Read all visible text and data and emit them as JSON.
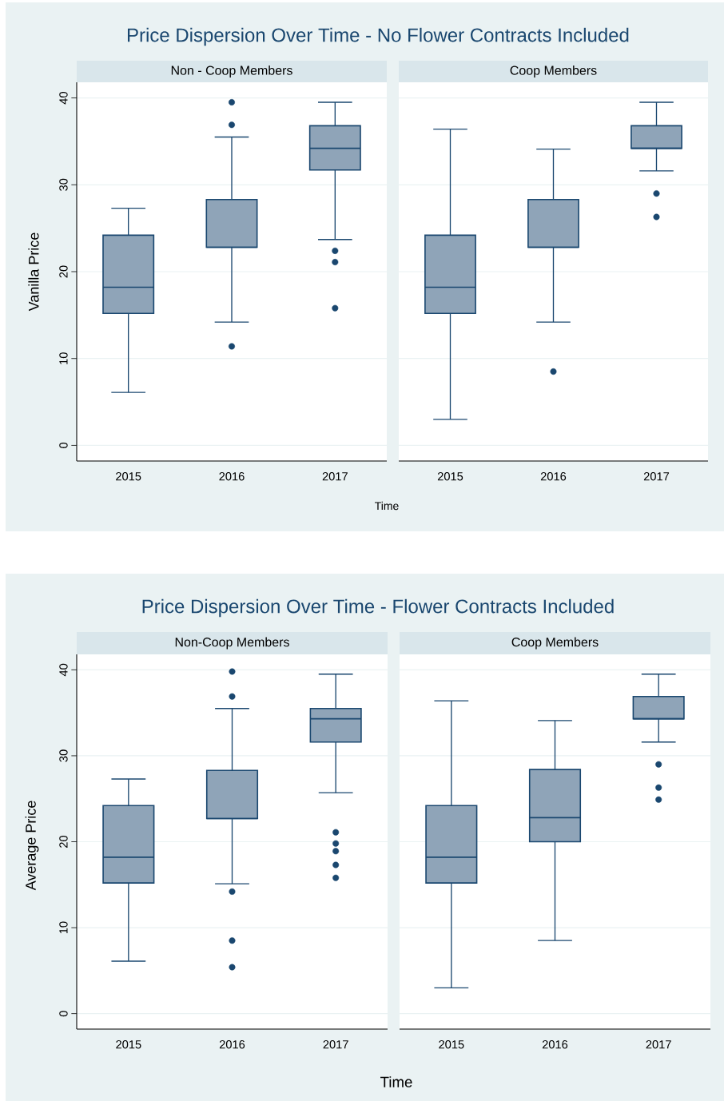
{
  "chart_data": [
    {
      "type": "box",
      "title": "Price Dispersion Over Time - No Flower Contracts Included",
      "subtitle": "Non - Coop Members",
      "xlabel": "Time",
      "ylabel": "Vanilla Price",
      "categories": [
        "2015",
        "2016",
        "2017"
      ],
      "color": "#8fa4b8",
      "ylim": [
        -1.8,
        41.8
      ],
      "yticks": [
        0,
        10,
        20,
        30,
        40
      ],
      "grid": "y",
      "boxes": [
        {
          "low": 6.1,
          "q1": 15.2,
          "median": 18.2,
          "q3": 24.2,
          "high": 27.3
        },
        {
          "low": 14.2,
          "q1": 22.8,
          "median": 22.8,
          "q3": 28.3,
          "high": 35.5,
          "outliers": [
            39.5,
            36.9,
            11.4
          ]
        },
        {
          "low": 23.7,
          "q1": 31.7,
          "median": 34.2,
          "q3": 36.8,
          "high": 39.5,
          "outliers": [
            22.4,
            21.1,
            15.8
          ]
        }
      ]
    },
    {
      "type": "box",
      "subtitle": "Coop Members",
      "categories": [
        "2015",
        "2016",
        "2017"
      ],
      "color": "#8fa4b8",
      "ylim": [
        -1.8,
        41.8
      ],
      "yticks": [
        0,
        10,
        20,
        30,
        40
      ],
      "grid": "y",
      "tick_labels": "x",
      "boxes": [
        {
          "low": 3.0,
          "q1": 15.2,
          "median": 18.2,
          "q3": 24.2,
          "high": 36.4
        },
        {
          "low": 14.2,
          "q1": 22.8,
          "median": 22.8,
          "q3": 28.3,
          "high": 34.1,
          "outliers": [
            8.5
          ]
        },
        {
          "low": 31.6,
          "q1": 34.2,
          "median": 34.2,
          "q3": 36.8,
          "high": 39.5,
          "outliers": [
            29.0,
            26.3
          ]
        }
      ]
    },
    {
      "type": "box",
      "title": "Price Dispersion Over Time - Flower Contracts Included",
      "subtitle": "Non-Coop Members",
      "xlabel": "Time",
      "ylabel": "Average Price",
      "categories": [
        "2015",
        "2016",
        "2017"
      ],
      "color": "#8fa4b8",
      "ylim": [
        -1.8,
        41.8
      ],
      "yticks": [
        0,
        10,
        20,
        30,
        40
      ],
      "grid": "y",
      "boxes": [
        {
          "low": 6.1,
          "q1": 15.2,
          "median": 18.2,
          "q3": 24.2,
          "high": 27.3
        },
        {
          "low": 15.1,
          "q1": 22.7,
          "median": 22.7,
          "q3": 28.3,
          "high": 35.5,
          "outliers": [
            39.8,
            36.9,
            14.2,
            8.5,
            5.4
          ]
        },
        {
          "low": 25.7,
          "q1": 31.6,
          "median": 34.3,
          "q3": 35.5,
          "high": 39.5,
          "outliers": [
            21.1,
            19.8,
            18.9,
            17.3,
            15.8
          ]
        }
      ]
    },
    {
      "type": "box",
      "subtitle": "Coop Members",
      "categories": [
        "2015",
        "2016",
        "2017"
      ],
      "color": "#8fa4b8",
      "ylim": [
        -1.8,
        41.8
      ],
      "yticks": [
        0,
        10,
        20,
        30,
        40
      ],
      "grid": "y",
      "tick_labels": "x",
      "boxes": [
        {
          "low": 3.0,
          "q1": 15.2,
          "median": 18.2,
          "q3": 24.2,
          "high": 36.4
        },
        {
          "low": 8.5,
          "q1": 20.0,
          "median": 22.8,
          "q3": 28.4,
          "high": 34.1
        },
        {
          "low": 31.6,
          "q1": 34.3,
          "median": 34.3,
          "q3": 36.9,
          "high": 39.5,
          "outliers": [
            29.0,
            26.3,
            24.9
          ]
        }
      ]
    }
  ]
}
